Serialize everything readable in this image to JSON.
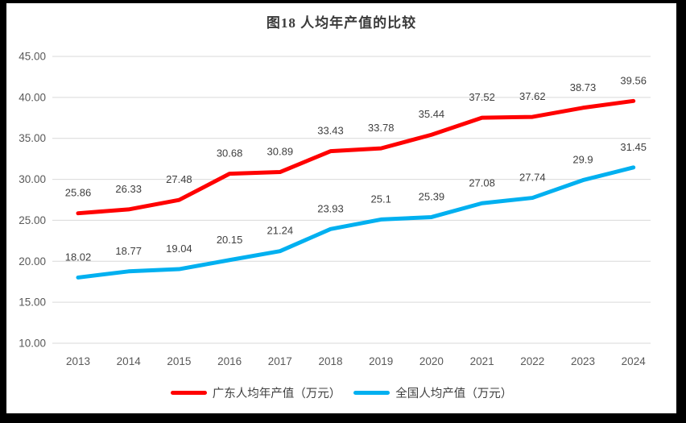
{
  "chart_data": {
    "type": "line",
    "title": "图18 人均年产值的比较",
    "categories": [
      "2013",
      "2014",
      "2015",
      "2016",
      "2017",
      "2018",
      "2019",
      "2020",
      "2021",
      "2022",
      "2023",
      "2024"
    ],
    "series": [
      {
        "name": "广东人均年产值（万元）",
        "color": "#ff0000",
        "values": [
          25.86,
          26.33,
          27.48,
          30.68,
          30.89,
          33.43,
          33.78,
          35.44,
          37.52,
          37.62,
          38.73,
          39.56
        ],
        "labels": [
          "25.86",
          "26.33",
          "27.48",
          "30.68",
          "30.89",
          "33.43",
          "33.78",
          "35.44",
          "37.52",
          "37.62",
          "38.73",
          "39.56"
        ]
      },
      {
        "name": "全国人均产值（万元）",
        "color": "#00b0f0",
        "values": [
          18.02,
          18.77,
          19.04,
          20.15,
          21.24,
          23.93,
          25.1,
          25.39,
          27.08,
          27.74,
          29.9,
          31.45
        ],
        "labels": [
          "18.02",
          "18.77",
          "19.04",
          "20.15",
          "21.24",
          "23.93",
          "25.1",
          "25.39",
          "27.08",
          "27.74",
          "29.9",
          "31.45"
        ]
      }
    ],
    "y_axis": {
      "min": 10,
      "max": 45,
      "step": 5,
      "tick_labels": [
        "10.00",
        "15.00",
        "20.00",
        "25.00",
        "30.00",
        "35.00",
        "40.00",
        "45.00"
      ]
    },
    "x_axis": {
      "tick_labels": [
        "2013",
        "2014",
        "2015",
        "2016",
        "2017",
        "2018",
        "2019",
        "2020",
        "2021",
        "2022",
        "2023",
        "2024"
      ]
    },
    "grid": true,
    "legend_position": "bottom",
    "colors": {
      "gridline": "#d9d9d9",
      "axis_text": "#595959",
      "data_label": "#404040",
      "title_text": "#3b3b3b",
      "background": "#ffffff",
      "frame_border": "#000000"
    }
  }
}
